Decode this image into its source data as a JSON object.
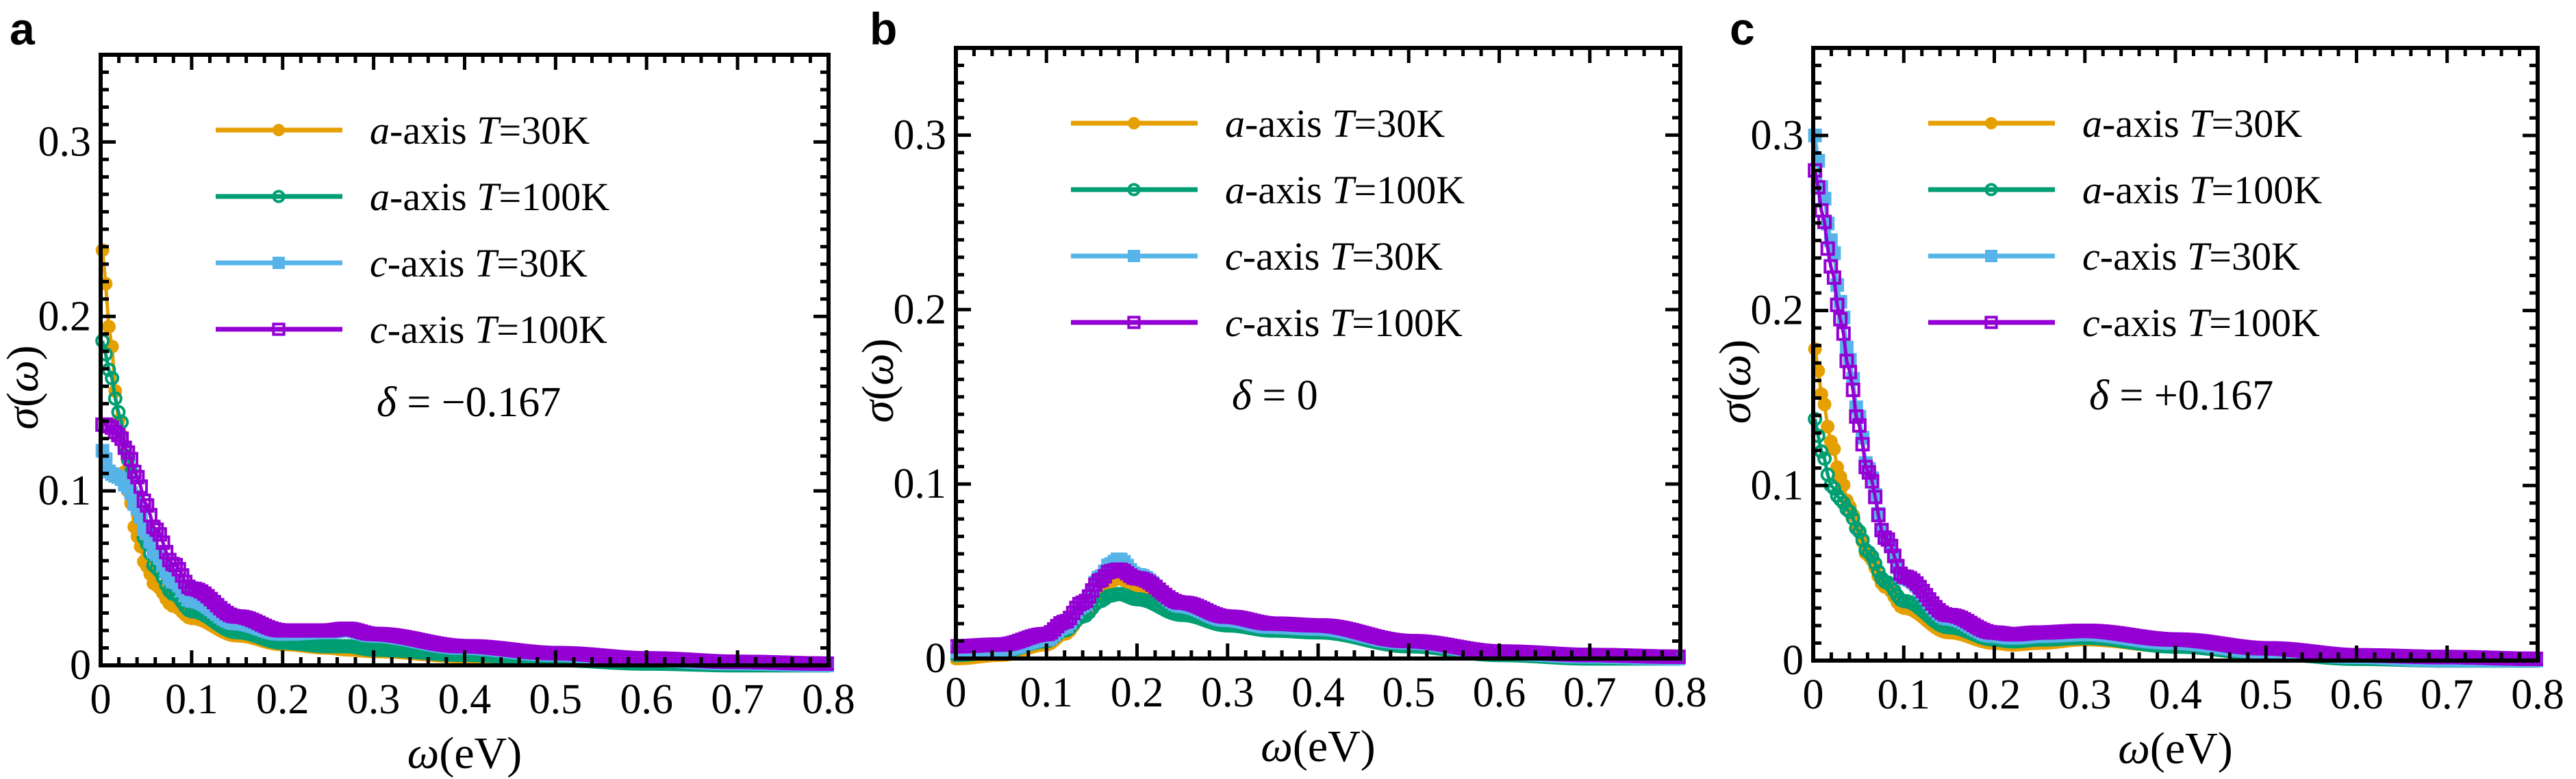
{
  "figure": {
    "colors": {
      "a_30K": "#E69F00",
      "a_100K": "#009E73",
      "c_30K": "#56B4E9",
      "c_100K": "#9400D3"
    },
    "legend_labels": [
      {
        "axis": "a",
        "rest": "-axis ",
        "T": "T",
        "val": "=30K",
        "marker": "filled-circle",
        "color_key": "a_30K"
      },
      {
        "axis": "a",
        "rest": "-axis ",
        "T": "T",
        "val": "=100K",
        "marker": "open-circle",
        "color_key": "a_100K"
      },
      {
        "axis": "c",
        "rest": "-axis ",
        "T": "T",
        "val": "=30K",
        "marker": "filled-square",
        "color_key": "c_30K"
      },
      {
        "axis": "c",
        "rest": "-axis ",
        "T": "T",
        "val": "=100K",
        "marker": "open-square",
        "color_key": "c_100K"
      }
    ]
  },
  "panels": [
    {
      "letter": "a",
      "delta": "δ = −0.167",
      "xlabel": "ω(eV)",
      "ylabel": "σ(ω)"
    },
    {
      "letter": "b",
      "delta": "δ = 0",
      "xlabel": "ω(eV)",
      "ylabel": "σ(ω)"
    },
    {
      "letter": "c",
      "delta": "δ = +0.167",
      "xlabel": "ω(eV)",
      "ylabel": "σ(ω)"
    }
  ],
  "chart_data": [
    {
      "type": "line",
      "panel": "a",
      "title": "",
      "annotation": "δ = −0.167",
      "xlabel": "ω(eV)",
      "ylabel": "σ(ω)",
      "xlim": [
        0,
        0.8
      ],
      "ylim": [
        0,
        0.35
      ],
      "xticks": [
        "0",
        "0.1",
        "0.2",
        "0.3",
        "0.4",
        "0.5",
        "0.6",
        "0.7",
        "0.8"
      ],
      "yticks": [
        "0",
        "0.1",
        "0.2",
        "0.3"
      ],
      "grid": false,
      "legend_position": "upper center",
      "series": [
        {
          "name": "a-axis T=30K",
          "marker": "filled-circle",
          "color": "#E69F00",
          "x": [
            0.002,
            0.006,
            0.01,
            0.02,
            0.03,
            0.04,
            0.05,
            0.06,
            0.08,
            0.1,
            0.15,
            0.2,
            0.25,
            0.27,
            0.3,
            0.4,
            0.5,
            0.6,
            0.7,
            0.8
          ],
          "y": [
            0.238,
            0.218,
            0.19,
            0.14,
            0.1,
            0.074,
            0.057,
            0.046,
            0.034,
            0.027,
            0.017,
            0.012,
            0.01,
            0.009,
            0.008,
            0.005,
            0.003,
            0.001,
            0.0,
            0.0
          ]
        },
        {
          "name": "a-axis T=100K",
          "marker": "open-circle",
          "color": "#009E73",
          "x": [
            0.002,
            0.006,
            0.01,
            0.02,
            0.03,
            0.04,
            0.05,
            0.06,
            0.08,
            0.1,
            0.15,
            0.2,
            0.25,
            0.27,
            0.3,
            0.4,
            0.5,
            0.6,
            0.7,
            0.8
          ],
          "y": [
            0.186,
            0.178,
            0.168,
            0.145,
            0.118,
            0.092,
            0.07,
            0.056,
            0.041,
            0.031,
            0.019,
            0.013,
            0.011,
            0.011,
            0.009,
            0.006,
            0.003,
            0.001,
            0.0,
            0.0
          ]
        },
        {
          "name": "c-axis T=30K",
          "marker": "filled-square",
          "color": "#56B4E9",
          "x": [
            0.002,
            0.006,
            0.01,
            0.02,
            0.03,
            0.04,
            0.05,
            0.06,
            0.08,
            0.1,
            0.15,
            0.2,
            0.25,
            0.27,
            0.3,
            0.4,
            0.5,
            0.6,
            0.7,
            0.8
          ],
          "y": [
            0.123,
            0.118,
            0.11,
            0.108,
            0.102,
            0.09,
            0.076,
            0.064,
            0.048,
            0.037,
            0.024,
            0.018,
            0.019,
            0.02,
            0.017,
            0.01,
            0.006,
            0.003,
            0.001,
            0.0
          ]
        },
        {
          "name": "c-axis T=100K",
          "marker": "open-square",
          "color": "#9400D3",
          "x": [
            0.002,
            0.006,
            0.01,
            0.02,
            0.03,
            0.04,
            0.05,
            0.06,
            0.08,
            0.1,
            0.15,
            0.2,
            0.25,
            0.27,
            0.3,
            0.4,
            0.5,
            0.6,
            0.7,
            0.8
          ],
          "y": [
            0.138,
            0.138,
            0.137,
            0.132,
            0.122,
            0.108,
            0.092,
            0.078,
            0.058,
            0.044,
            0.028,
            0.02,
            0.02,
            0.021,
            0.018,
            0.011,
            0.007,
            0.004,
            0.002,
            0.001
          ]
        }
      ]
    },
    {
      "type": "line",
      "panel": "b",
      "title": "",
      "annotation": "δ = 0",
      "xlabel": "ω(eV)",
      "ylabel": "σ(ω)",
      "xlim": [
        0,
        0.8
      ],
      "ylim": [
        0,
        0.35
      ],
      "xticks": [
        "0",
        "0.1",
        "0.2",
        "0.3",
        "0.4",
        "0.5",
        "0.6",
        "0.7",
        "0.8"
      ],
      "yticks": [
        "0",
        "0.1",
        "0.2",
        "0.3"
      ],
      "grid": false,
      "legend_position": "upper center",
      "series": [
        {
          "name": "a-axis T=30K",
          "marker": "filled-circle",
          "color": "#E69F00",
          "x": [
            0.0,
            0.05,
            0.1,
            0.12,
            0.14,
            0.16,
            0.17,
            0.18,
            0.2,
            0.25,
            0.3,
            0.35,
            0.4,
            0.5,
            0.6,
            0.7,
            0.8
          ],
          "y": [
            0.0,
            0.002,
            0.008,
            0.014,
            0.024,
            0.038,
            0.044,
            0.046,
            0.04,
            0.026,
            0.019,
            0.016,
            0.015,
            0.007,
            0.002,
            0.0,
            0.0
          ]
        },
        {
          "name": "a-axis T=100K",
          "marker": "open-circle",
          "color": "#009E73",
          "x": [
            0.0,
            0.05,
            0.1,
            0.12,
            0.14,
            0.16,
            0.17,
            0.18,
            0.2,
            0.25,
            0.3,
            0.35,
            0.4,
            0.5,
            0.6,
            0.7,
            0.8
          ],
          "y": [
            0.002,
            0.004,
            0.01,
            0.016,
            0.024,
            0.033,
            0.036,
            0.037,
            0.034,
            0.025,
            0.019,
            0.016,
            0.015,
            0.007,
            0.002,
            0.0,
            0.0
          ]
        },
        {
          "name": "c-axis T=30K",
          "marker": "filled-square",
          "color": "#56B4E9",
          "x": [
            0.0,
            0.05,
            0.1,
            0.12,
            0.14,
            0.16,
            0.17,
            0.18,
            0.2,
            0.25,
            0.3,
            0.35,
            0.4,
            0.5,
            0.6,
            0.7,
            0.8
          ],
          "y": [
            0.004,
            0.005,
            0.011,
            0.018,
            0.03,
            0.047,
            0.054,
            0.057,
            0.048,
            0.03,
            0.022,
            0.018,
            0.017,
            0.009,
            0.003,
            0.001,
            0.0
          ]
        },
        {
          "name": "c-axis T=100K",
          "marker": "open-square",
          "color": "#9400D3",
          "x": [
            0.0,
            0.05,
            0.1,
            0.12,
            0.14,
            0.16,
            0.17,
            0.18,
            0.2,
            0.25,
            0.3,
            0.35,
            0.4,
            0.5,
            0.6,
            0.7,
            0.8
          ],
          "y": [
            0.007,
            0.008,
            0.014,
            0.021,
            0.032,
            0.045,
            0.05,
            0.051,
            0.046,
            0.032,
            0.024,
            0.02,
            0.019,
            0.01,
            0.004,
            0.002,
            0.001
          ]
        }
      ]
    },
    {
      "type": "line",
      "panel": "c",
      "title": "",
      "annotation": "δ = +0.167",
      "xlabel": "ω(eV)",
      "ylabel": "σ(ω)",
      "xlim": [
        0,
        0.8
      ],
      "ylim": [
        0,
        0.35
      ],
      "xticks": [
        "0",
        "0.1",
        "0.2",
        "0.3",
        "0.4",
        "0.5",
        "0.6",
        "0.7",
        "0.8"
      ],
      "yticks": [
        "0",
        "0.1",
        "0.2",
        "0.3"
      ],
      "grid": false,
      "legend_position": "upper center",
      "series": [
        {
          "name": "a-axis T=30K",
          "marker": "filled-circle",
          "color": "#E69F00",
          "x": [
            0.002,
            0.006,
            0.01,
            0.02,
            0.03,
            0.04,
            0.05,
            0.06,
            0.08,
            0.1,
            0.15,
            0.2,
            0.22,
            0.25,
            0.3,
            0.4,
            0.5,
            0.6,
            0.7,
            0.8
          ],
          "y": [
            0.178,
            0.165,
            0.15,
            0.125,
            0.105,
            0.088,
            0.074,
            0.06,
            0.042,
            0.03,
            0.016,
            0.01,
            0.009,
            0.01,
            0.012,
            0.008,
            0.004,
            0.001,
            0.0,
            0.0
          ]
        },
        {
          "name": "a-axis T=100K",
          "marker": "open-circle",
          "color": "#009E73",
          "x": [
            0.002,
            0.006,
            0.01,
            0.02,
            0.03,
            0.04,
            0.05,
            0.06,
            0.08,
            0.1,
            0.15,
            0.2,
            0.22,
            0.25,
            0.3,
            0.4,
            0.5,
            0.6,
            0.7,
            0.8
          ],
          "y": [
            0.138,
            0.128,
            0.118,
            0.1,
            0.092,
            0.085,
            0.074,
            0.062,
            0.045,
            0.034,
            0.019,
            0.012,
            0.011,
            0.012,
            0.013,
            0.008,
            0.004,
            0.001,
            0.0,
            0.0
          ]
        },
        {
          "name": "c-axis T=30K",
          "marker": "filled-square",
          "color": "#56B4E9",
          "x": [
            0.002,
            0.006,
            0.01,
            0.02,
            0.03,
            0.04,
            0.05,
            0.06,
            0.08,
            0.1,
            0.15,
            0.2,
            0.22,
            0.25,
            0.3,
            0.4,
            0.5,
            0.6,
            0.7,
            0.8
          ],
          "y": [
            0.3,
            0.285,
            0.268,
            0.24,
            0.205,
            0.172,
            0.14,
            0.11,
            0.07,
            0.047,
            0.024,
            0.014,
            0.013,
            0.014,
            0.015,
            0.01,
            0.005,
            0.002,
            0.0,
            0.0
          ]
        },
        {
          "name": "c-axis T=100K",
          "marker": "open-square",
          "color": "#9400D3",
          "x": [
            0.002,
            0.006,
            0.01,
            0.02,
            0.03,
            0.04,
            0.05,
            0.06,
            0.08,
            0.1,
            0.15,
            0.2,
            0.22,
            0.25,
            0.3,
            0.4,
            0.5,
            0.6,
            0.7,
            0.8
          ],
          "y": [
            0.28,
            0.27,
            0.255,
            0.225,
            0.195,
            0.165,
            0.135,
            0.108,
            0.07,
            0.048,
            0.026,
            0.016,
            0.015,
            0.016,
            0.017,
            0.012,
            0.007,
            0.003,
            0.002,
            0.001
          ]
        }
      ]
    }
  ]
}
